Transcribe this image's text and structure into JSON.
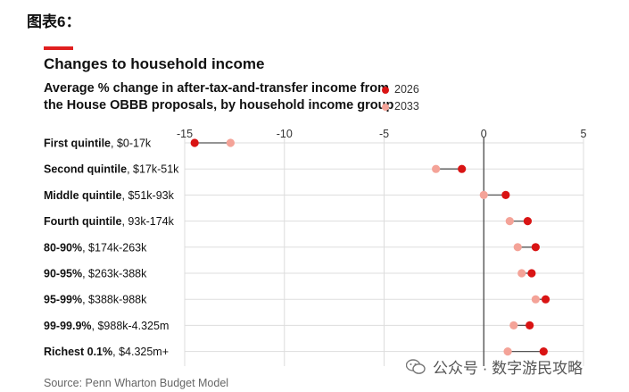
{
  "figure_label": "图表6：",
  "watermark_text": "公众号 · 数字游民攻略",
  "colors": {
    "accent": "#e01f1f",
    "series_2026": "#d91414",
    "series_2033": "#f4a398",
    "grid": "#dddddd",
    "zero_line": "#555555",
    "connector": "#555555"
  },
  "chart_data": {
    "type": "dumbbell",
    "title": "Changes to household income",
    "subtitle_lines": [
      "Average % change in after-tax-and-transfer income from",
      "the House OBBB proposals, by household income group"
    ],
    "source": "Source: Penn Wharton Budget Model",
    "xlim": [
      -15,
      5
    ],
    "xticks": [
      -15,
      -10,
      -5,
      0,
      5
    ],
    "legend_position": "top-right",
    "series": [
      {
        "name": "2026",
        "values": [
          -14.5,
          -1.1,
          1.1,
          2.2,
          2.6,
          2.4,
          3.1,
          2.3,
          3.0
        ]
      },
      {
        "name": "2033",
        "values": [
          -12.7,
          -2.4,
          0.0,
          1.3,
          1.7,
          1.9,
          2.6,
          1.5,
          1.2
        ]
      }
    ],
    "categories": [
      {
        "bold": "First quintile",
        "range": ", $0-17k"
      },
      {
        "bold": "Second quintile",
        "range": ", $17k-51k"
      },
      {
        "bold": "Middle quintile",
        "range": ", $51k-93k"
      },
      {
        "bold": "Fourth quintile",
        "range": ", 93k-174k"
      },
      {
        "bold": "80-90%",
        "range": ", $174k-263k"
      },
      {
        "bold": "90-95%",
        "range": ", $263k-388k"
      },
      {
        "bold": "95-99%",
        "range": ", $388k-988k"
      },
      {
        "bold": "99-99.9%",
        "range": ", $988k-4.325m"
      },
      {
        "bold": "Richest 0.1%",
        "range": ", $4.325m+"
      }
    ]
  }
}
